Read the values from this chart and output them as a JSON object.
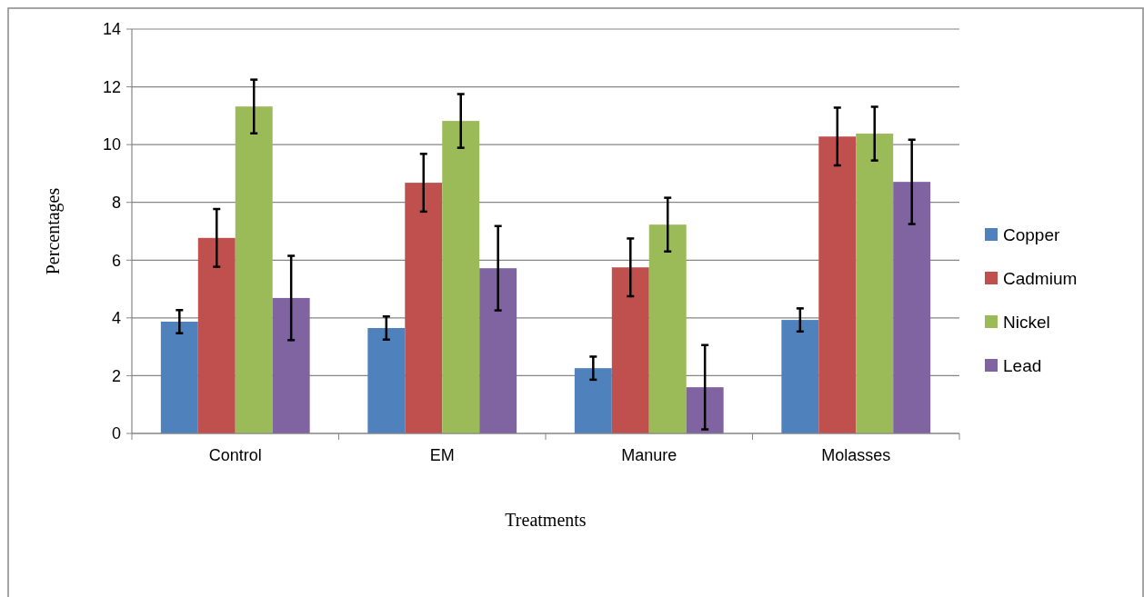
{
  "chart_data": {
    "type": "bar",
    "xlabel": "Treatments",
    "ylabel": "Percentages",
    "categories": [
      "Control",
      "EM",
      "Manure",
      "Molasses"
    ],
    "series": [
      {
        "name": "Copper",
        "color": "#4f81bd",
        "values": [
          3.87,
          3.65,
          2.26,
          3.93
        ],
        "errors": [
          0.4,
          0.4,
          0.4,
          0.4
        ]
      },
      {
        "name": "Cadmium",
        "color": "#c0504d",
        "values": [
          6.77,
          8.68,
          5.75,
          10.28
        ],
        "errors": [
          1.0,
          1.0,
          1.0,
          1.0
        ]
      },
      {
        "name": "Nickel",
        "color": "#9bbb59",
        "values": [
          11.32,
          10.82,
          7.23,
          10.38
        ],
        "errors": [
          0.93,
          0.93,
          0.93,
          0.93
        ]
      },
      {
        "name": "Lead",
        "color": "#8064a2",
        "values": [
          4.69,
          5.72,
          1.6,
          8.71
        ],
        "errors": [
          1.46,
          1.46,
          1.46,
          1.46
        ]
      }
    ],
    "ylim": [
      0,
      14
    ],
    "yticks": [
      0,
      2,
      4,
      6,
      8,
      10,
      12,
      14
    ],
    "grid": "y",
    "legend": "right"
  }
}
